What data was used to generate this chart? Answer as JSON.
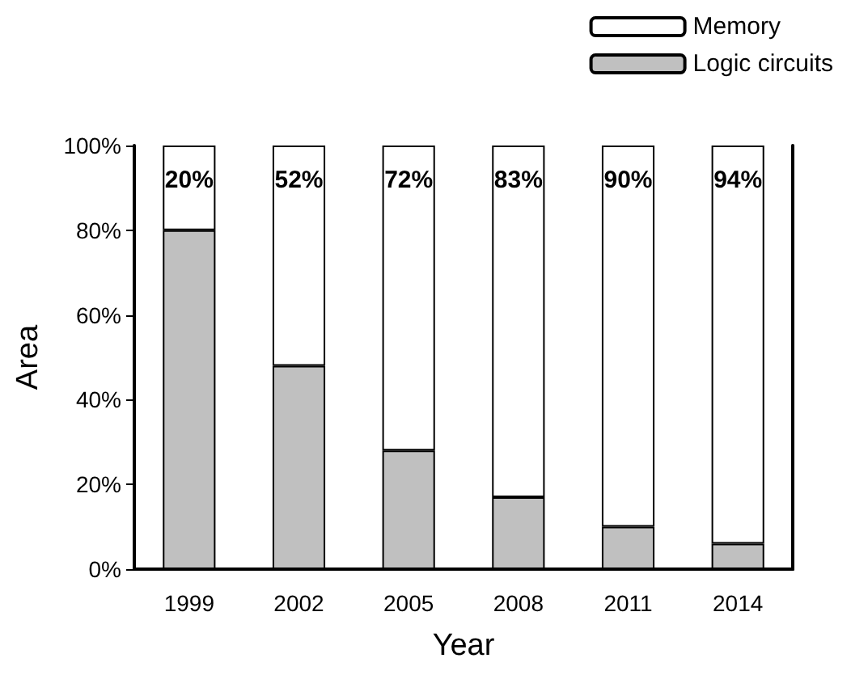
{
  "chart_data": {
    "type": "bar",
    "stacked": true,
    "xlabel": "Year",
    "ylabel": "Area",
    "categories": [
      "1999",
      "2002",
      "2005",
      "2008",
      "2011",
      "2014"
    ],
    "series": [
      {
        "name": "Logic circuits",
        "color": "#c0c0c0",
        "values": [
          80,
          48,
          28,
          17,
          10,
          6
        ]
      },
      {
        "name": "Memory",
        "color": "#ffffff",
        "values": [
          20,
          52,
          72,
          83,
          90,
          94
        ],
        "value_labels": [
          "20%",
          "52%",
          "72%",
          "83%",
          "90%",
          "94%"
        ]
      }
    ],
    "ylim": [
      0,
      100
    ],
    "yticks": [
      {
        "value": 0,
        "label": "0%"
      },
      {
        "value": 20,
        "label": "20%"
      },
      {
        "value": 40,
        "label": "40%"
      },
      {
        "value": 60,
        "label": "60%"
      },
      {
        "value": 80,
        "label": "80%"
      },
      {
        "value": 100,
        "label": "100%"
      }
    ],
    "grid": false,
    "legend": "top right"
  }
}
